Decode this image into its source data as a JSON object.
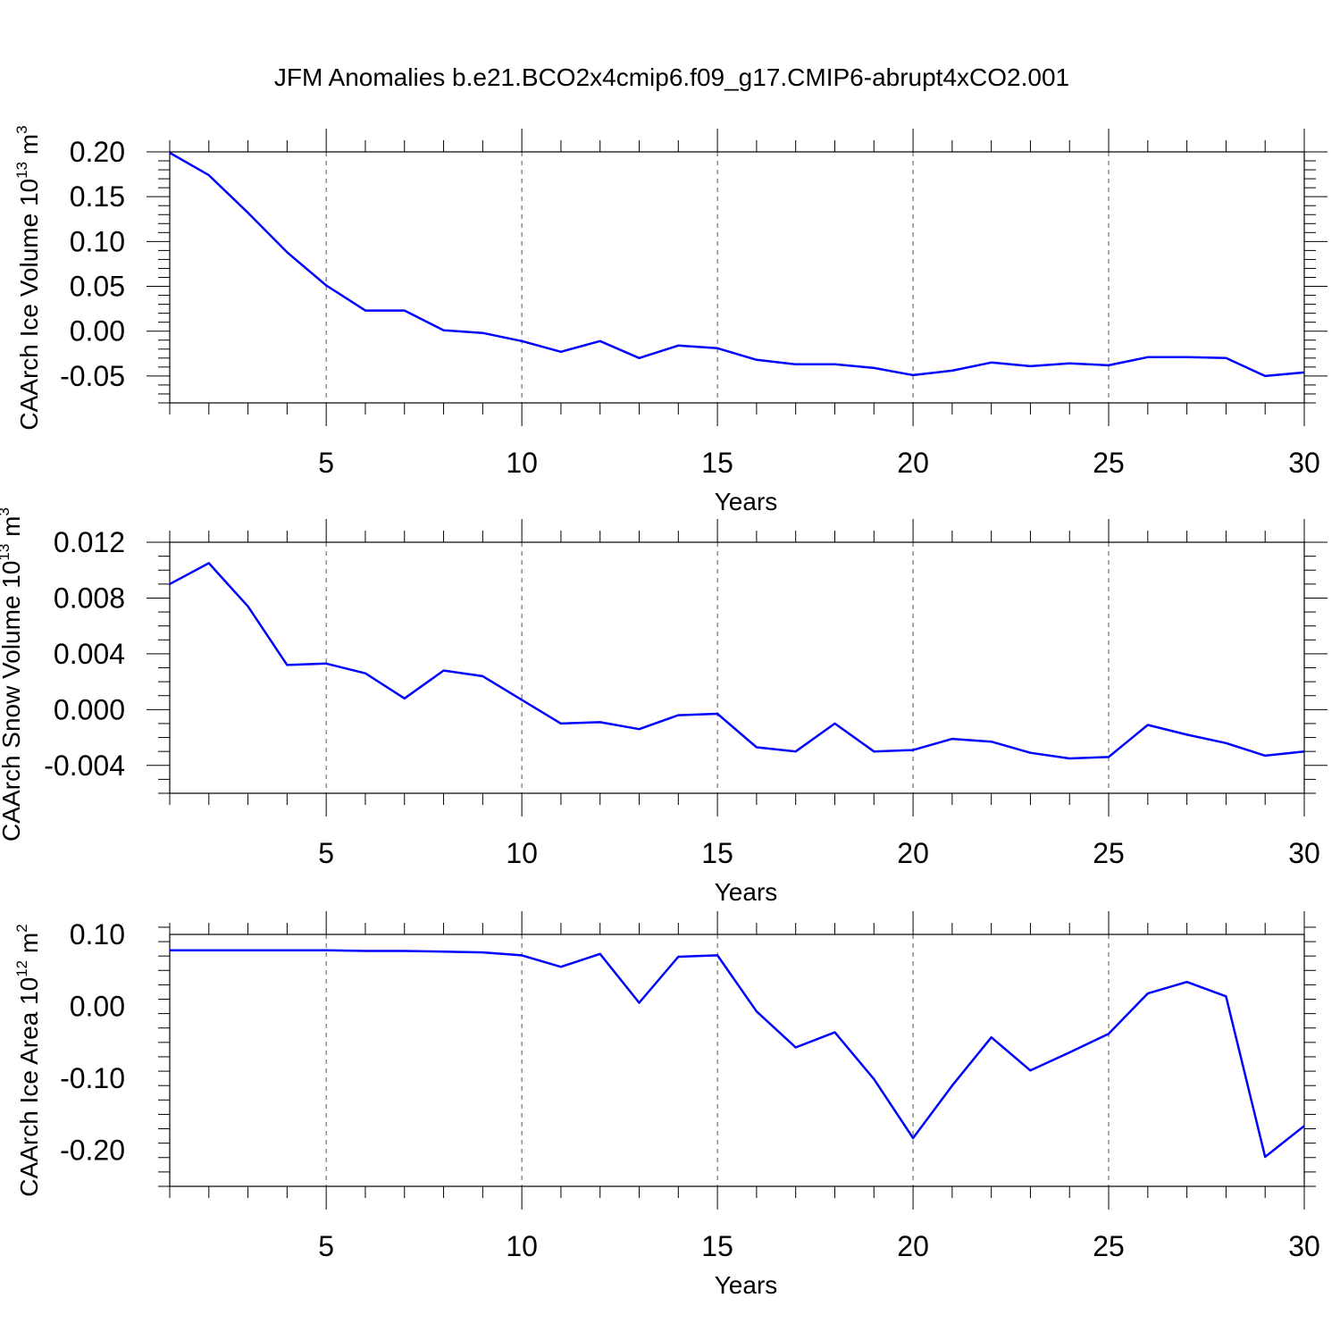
{
  "title": "JFM Anomalies b.e21.BCO2x4cmip6.f09_g17.CMIP6-abrupt4xCO2.001",
  "colors": {
    "line": "#0000ff",
    "axis": "#000000",
    "grid": "#555555",
    "background": "#ffffff"
  },
  "chart_data": [
    {
      "type": "line",
      "id": "ice-volume",
      "xlabel": "Years",
      "ylabel": {
        "text": "CAArch Ice Volume 10",
        "exponent": "13",
        "unit": " m",
        "unit_exponent": "3"
      },
      "xlim": [
        1,
        30
      ],
      "ylim": [
        -0.08,
        0.2
      ],
      "xticks": [
        5,
        10,
        15,
        20,
        25,
        30
      ],
      "xtick_labels": [
        "5",
        "10",
        "15",
        "20",
        "25",
        "30"
      ],
      "yticks": [
        0.2,
        0.15,
        0.1,
        0.05,
        0.0,
        -0.05
      ],
      "ytick_labels": [
        "0.20",
        "0.15",
        "0.10",
        "0.05",
        "0.00",
        "-0.05"
      ],
      "x_minor_step": 1,
      "y_minor_step": 0.01,
      "grid_x": [
        5,
        10,
        15,
        20,
        25
      ],
      "series": [
        {
          "x": [
            1,
            2,
            3,
            4,
            5,
            6,
            7,
            8,
            9,
            10,
            11,
            12,
            13,
            14,
            15,
            16,
            17,
            18,
            19,
            20,
            21,
            22,
            23,
            24,
            25,
            26,
            27,
            28,
            29,
            30
          ],
          "values": [
            0.199,
            0.174,
            0.132,
            0.088,
            0.051,
            0.023,
            0.023,
            0.001,
            -0.002,
            -0.011,
            -0.023,
            -0.011,
            -0.03,
            -0.016,
            -0.019,
            -0.032,
            -0.037,
            -0.037,
            -0.041,
            -0.049,
            -0.044,
            -0.035,
            -0.039,
            -0.036,
            -0.038,
            -0.029,
            -0.029,
            -0.03,
            -0.05,
            -0.046
          ]
        }
      ]
    },
    {
      "type": "line",
      "id": "snow-volume",
      "xlabel": "Years",
      "ylabel": {
        "text": "CAArch Snow Volume 10",
        "exponent": "13",
        "unit": " m",
        "unit_exponent": "3"
      },
      "xlim": [
        1,
        30
      ],
      "ylim": [
        -0.006,
        0.012
      ],
      "xticks": [
        5,
        10,
        15,
        20,
        25,
        30
      ],
      "xtick_labels": [
        "5",
        "10",
        "15",
        "20",
        "25",
        "30"
      ],
      "yticks": [
        0.012,
        0.008,
        0.004,
        0.0,
        -0.004
      ],
      "ytick_labels": [
        "0.012",
        "0.008",
        "0.004",
        "0.000",
        "-0.004"
      ],
      "x_minor_step": 1,
      "y_minor_step": 0.001,
      "grid_x": [
        5,
        10,
        15,
        20,
        25
      ],
      "series": [
        {
          "x": [
            1,
            2,
            3,
            4,
            5,
            6,
            7,
            8,
            9,
            10,
            11,
            12,
            13,
            14,
            15,
            16,
            17,
            18,
            19,
            20,
            21,
            22,
            23,
            24,
            25,
            26,
            27,
            28,
            29,
            30
          ],
          "values": [
            0.009,
            0.0105,
            0.0074,
            0.0032,
            0.0033,
            0.0026,
            0.0008,
            0.0028,
            0.0024,
            0.0007,
            -0.001,
            -0.0009,
            -0.0014,
            -0.0004,
            -0.0003,
            -0.0027,
            -0.003,
            -0.001,
            -0.003,
            -0.0029,
            -0.0021,
            -0.0023,
            -0.0031,
            -0.0035,
            -0.0034,
            -0.0011,
            -0.0018,
            -0.0024,
            -0.0033,
            -0.003
          ]
        }
      ]
    },
    {
      "type": "line",
      "id": "ice-area",
      "xlabel": "Years",
      "ylabel": {
        "text": "CAArch Ice Area 10",
        "exponent": "12",
        "unit": " m",
        "unit_exponent": "2"
      },
      "xlim": [
        1,
        30
      ],
      "ylim": [
        -0.25,
        0.1
      ],
      "xticks": [
        5,
        10,
        15,
        20,
        25,
        30
      ],
      "xtick_labels": [
        "5",
        "10",
        "15",
        "20",
        "25",
        "30"
      ],
      "yticks": [
        0.1,
        0.0,
        -0.1,
        -0.2
      ],
      "ytick_labels": [
        "0.10",
        "0.00",
        "-0.10",
        "-0.20"
      ],
      "x_minor_step": 1,
      "y_minor_step": 0.02,
      "grid_x": [
        5,
        10,
        15,
        20,
        25
      ],
      "series": [
        {
          "x": [
            1,
            2,
            3,
            4,
            5,
            6,
            7,
            8,
            9,
            10,
            11,
            12,
            13,
            14,
            15,
            16,
            17,
            18,
            19,
            20,
            21,
            22,
            23,
            24,
            25,
            26,
            27,
            28,
            29,
            30
          ],
          "values": [
            0.078,
            0.078,
            0.078,
            0.078,
            0.078,
            0.077,
            0.077,
            0.076,
            0.075,
            0.071,
            0.055,
            0.073,
            0.005,
            0.069,
            0.071,
            -0.007,
            -0.057,
            -0.036,
            -0.101,
            -0.183,
            -0.11,
            -0.043,
            -0.089,
            -0.064,
            -0.038,
            0.018,
            0.034,
            0.014,
            -0.209,
            -0.166
          ]
        }
      ]
    }
  ]
}
